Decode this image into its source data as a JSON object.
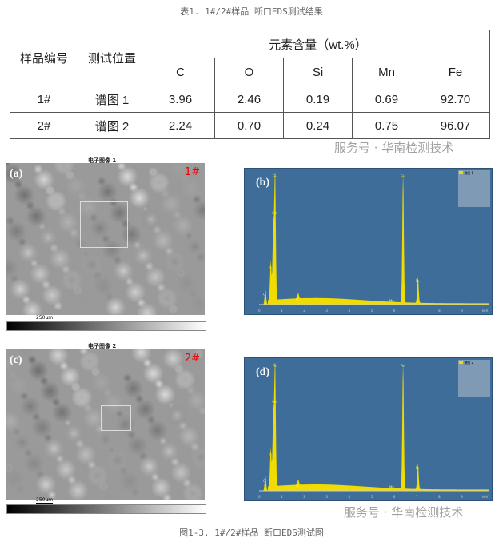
{
  "table_caption": "表1. 1#/2#样品 断口EDS测试结果",
  "table": {
    "headers": {
      "sample": "样品编号",
      "position": "测试位置",
      "group": "元素含量（wt.%）",
      "elements": [
        "C",
        "O",
        "Si",
        "Mn",
        "Fe"
      ]
    },
    "rows": [
      {
        "sample": "1#",
        "position": "谱图 1",
        "values": [
          "3.96",
          "2.46",
          "0.19",
          "0.69",
          "92.70"
        ]
      },
      {
        "sample": "2#",
        "position": "谱图 2",
        "values": [
          "2.24",
          "0.70",
          "0.24",
          "0.75",
          "96.07"
        ]
      }
    ]
  },
  "watermark": "服务号 · 华南检测技术",
  "figures": {
    "a": {
      "title": "电子图像 1",
      "label": "(a)",
      "sample": "1#",
      "scale": "250μm"
    },
    "b": {
      "label": "(b)",
      "legend": "谱图 1",
      "yticks": [
        "0",
        "500",
        "1000",
        "1500"
      ],
      "xticks": [
        "0",
        "1",
        "2",
        "3",
        "4",
        "5",
        "6",
        "7",
        "8",
        "9",
        "keV"
      ],
      "peaks": [
        "Fe",
        "Mn",
        "O",
        "C",
        "Si",
        "Mn",
        "Fe",
        "Fe"
      ]
    },
    "c": {
      "title": "电子图像 2",
      "label": "(c)",
      "sample": "2#",
      "scale": "250μm"
    },
    "d": {
      "label": "(d)",
      "legend": "谱图 2",
      "peaks": [
        "Fe",
        "Mn",
        "O",
        "C",
        "Si",
        "Mn",
        "Fe",
        "Fe"
      ]
    }
  },
  "figure_caption": "图1-3. 1#/2#样品  断口EDS测试图",
  "colors": {
    "spectrum_bg": "#3f6d9a",
    "spectrum_fill": "#f0dc00",
    "sample_label": "#e00000"
  }
}
